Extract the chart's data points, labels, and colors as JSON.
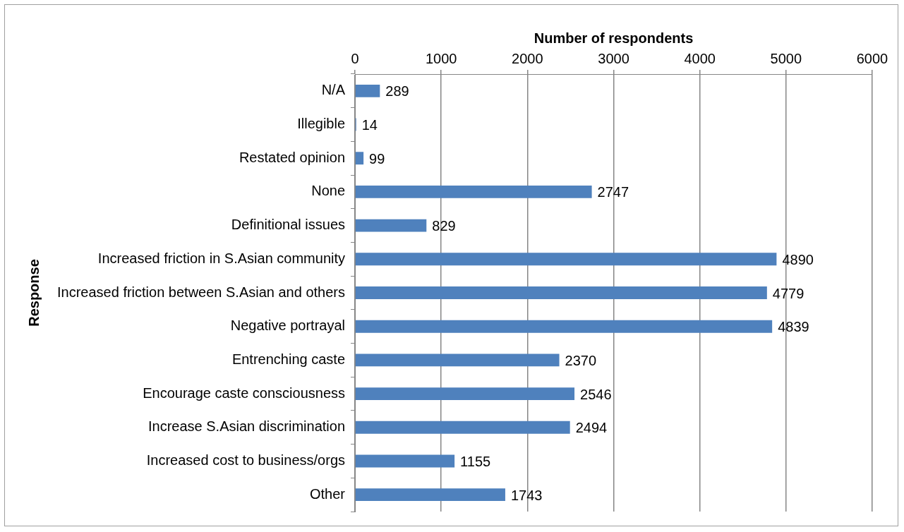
{
  "chart_data": {
    "type": "bar",
    "orientation": "horizontal",
    "xlabel": "Number of respondents",
    "ylabel": "Response",
    "categories": [
      "N/A",
      "Illegible",
      "Restated opinion",
      "None",
      "Definitional issues",
      "Increased friction in S.Asian community",
      "Increased friction between S.Asian and others",
      "Negative portrayal",
      "Entrenching caste",
      "Encourage caste consciousness",
      "Increase S.Asian discrimination",
      "Increased cost to business/orgs",
      "Other"
    ],
    "values": [
      289,
      14,
      99,
      2747,
      829,
      4890,
      4779,
      4839,
      2370,
      2546,
      2494,
      1155,
      1743
    ],
    "color": "#4f81bd",
    "xlim": [
      0,
      6000
    ],
    "xticks": [
      0,
      1000,
      2000,
      3000,
      4000,
      5000,
      6000
    ],
    "grid": "x",
    "data_labels": true
  }
}
